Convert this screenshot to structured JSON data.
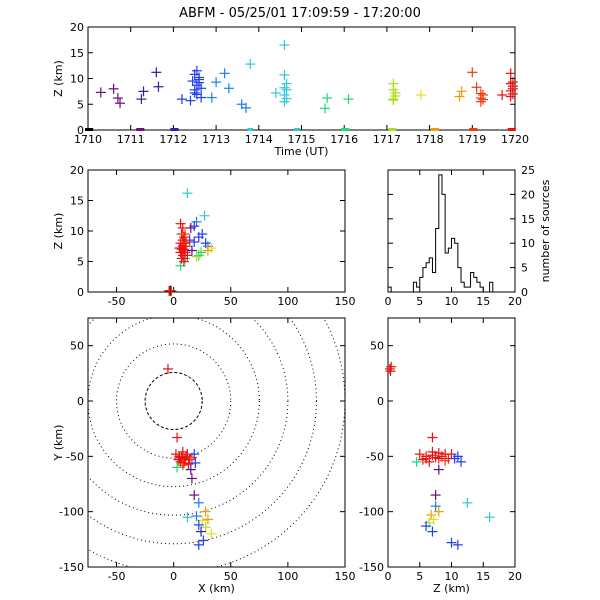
{
  "title": "ABFM - 05/25/01 17:09:59 - 17:20:00",
  "colors": {
    "background": "#ffffff",
    "axes": "#000000",
    "palette": [
      "#000000",
      "#6a0f78",
      "#3a1aa0",
      "#1f3cf0",
      "#1a7ef0",
      "#33c8d8",
      "#1fd87a",
      "#33e01a",
      "#a8e01a",
      "#e8e01a",
      "#f09a0a",
      "#f03a0a",
      "#e81010"
    ]
  },
  "chart_data": [
    {
      "name": "time-height",
      "type": "scatter",
      "xlabel": "Time (UT)",
      "ylabel": "Z (km)",
      "xlim": [
        1710,
        1720
      ],
      "ylim": [
        0,
        20
      ],
      "xticks": [
        1710,
        1711,
        1712,
        1713,
        1714,
        1715,
        1716,
        1717,
        1718,
        1719,
        1720
      ],
      "xticklabels": [
        "1710",
        "1711",
        "1712",
        "1713",
        "1714",
        "1715",
        "1716",
        "1717",
        "1718",
        "1719",
        "1720"
      ],
      "yticks": [
        0,
        5,
        10,
        15,
        20
      ],
      "points": [
        {
          "x": 1710.3,
          "y": 7.3,
          "c": 1
        },
        {
          "x": 1710.6,
          "y": 8.0,
          "c": 1
        },
        {
          "x": 1710.7,
          "y": 6.2,
          "c": 1
        },
        {
          "x": 1710.75,
          "y": 5.2,
          "c": 1
        },
        {
          "x": 1711.3,
          "y": 7.5,
          "c": 2
        },
        {
          "x": 1711.25,
          "y": 6.0,
          "c": 2
        },
        {
          "x": 1711.6,
          "y": 11.2,
          "c": 2
        },
        {
          "x": 1711.65,
          "y": 8.4,
          "c": 2
        },
        {
          "x": 1712.2,
          "y": 6.0,
          "c": 3
        },
        {
          "x": 1712.4,
          "y": 5.7,
          "c": 3
        },
        {
          "x": 1712.5,
          "y": 7.8,
          "c": 3
        },
        {
          "x": 1712.55,
          "y": 8.7,
          "c": 3
        },
        {
          "x": 1712.6,
          "y": 9.8,
          "c": 3
        },
        {
          "x": 1712.5,
          "y": 10.8,
          "c": 3
        },
        {
          "x": 1712.6,
          "y": 9.2,
          "c": 3
        },
        {
          "x": 1712.55,
          "y": 6.9,
          "c": 3
        },
        {
          "x": 1712.65,
          "y": 8.1,
          "c": 3
        },
        {
          "x": 1712.45,
          "y": 9.5,
          "c": 3
        },
        {
          "x": 1712.6,
          "y": 10.2,
          "c": 3
        },
        {
          "x": 1712.5,
          "y": 7.2,
          "c": 3
        },
        {
          "x": 1712.55,
          "y": 11.5,
          "c": 3
        },
        {
          "x": 1712.65,
          "y": 6.3,
          "c": 3
        },
        {
          "x": 1712.9,
          "y": 6.3,
          "c": 4
        },
        {
          "x": 1713.0,
          "y": 9.3,
          "c": 4
        },
        {
          "x": 1713.2,
          "y": 11.0,
          "c": 4
        },
        {
          "x": 1713.3,
          "y": 8.1,
          "c": 4
        },
        {
          "x": 1713.6,
          "y": 5.0,
          "c": 4
        },
        {
          "x": 1713.7,
          "y": 4.3,
          "c": 4
        },
        {
          "x": 1713.8,
          "y": 12.8,
          "c": 5
        },
        {
          "x": 1714.4,
          "y": 7.2,
          "c": 5
        },
        {
          "x": 1714.6,
          "y": 16.5,
          "c": 5
        },
        {
          "x": 1714.6,
          "y": 10.7,
          "c": 5
        },
        {
          "x": 1714.65,
          "y": 9.0,
          "c": 5
        },
        {
          "x": 1714.6,
          "y": 8.2,
          "c": 5
        },
        {
          "x": 1714.65,
          "y": 7.8,
          "c": 5
        },
        {
          "x": 1714.6,
          "y": 6.8,
          "c": 5
        },
        {
          "x": 1714.65,
          "y": 6.1,
          "c": 5
        },
        {
          "x": 1714.6,
          "y": 5.5,
          "c": 5
        },
        {
          "x": 1715.55,
          "y": 4.2,
          "c": 6
        },
        {
          "x": 1715.6,
          "y": 6.2,
          "c": 6
        },
        {
          "x": 1716.1,
          "y": 6.0,
          "c": 6
        },
        {
          "x": 1717.15,
          "y": 9.0,
          "c": 8
        },
        {
          "x": 1717.15,
          "y": 7.8,
          "c": 8
        },
        {
          "x": 1717.2,
          "y": 6.6,
          "c": 8
        },
        {
          "x": 1717.15,
          "y": 6.0,
          "c": 8
        },
        {
          "x": 1717.2,
          "y": 7.2,
          "c": 8
        },
        {
          "x": 1717.15,
          "y": 5.8,
          "c": 8
        },
        {
          "x": 1717.8,
          "y": 6.8,
          "c": 9
        },
        {
          "x": 1718.7,
          "y": 6.5,
          "c": 10
        },
        {
          "x": 1718.75,
          "y": 7.5,
          "c": 10
        },
        {
          "x": 1719.0,
          "y": 11.2,
          "c": 11
        },
        {
          "x": 1719.1,
          "y": 8.3,
          "c": 11
        },
        {
          "x": 1719.2,
          "y": 5.5,
          "c": 11
        },
        {
          "x": 1719.2,
          "y": 6.2,
          "c": 11
        },
        {
          "x": 1719.25,
          "y": 6.8,
          "c": 11
        },
        {
          "x": 1719.2,
          "y": 7.1,
          "c": 11
        },
        {
          "x": 1719.25,
          "y": 5.9,
          "c": 11
        },
        {
          "x": 1719.7,
          "y": 6.8,
          "c": 12
        },
        {
          "x": 1719.9,
          "y": 11.0,
          "c": 12
        },
        {
          "x": 1719.95,
          "y": 9.3,
          "c": 12
        },
        {
          "x": 1719.95,
          "y": 8.5,
          "c": 12
        },
        {
          "x": 1719.9,
          "y": 7.6,
          "c": 12
        },
        {
          "x": 1719.95,
          "y": 7.0,
          "c": 12
        },
        {
          "x": 1719.9,
          "y": 6.5,
          "c": 12
        },
        {
          "x": 1719.95,
          "y": 8.0,
          "c": 12
        },
        {
          "x": 1719.9,
          "y": 9.0,
          "c": 12
        }
      ],
      "ground": [
        {
          "x": 1710.0,
          "c": 0
        },
        {
          "x": 1710.05,
          "c": 0
        },
        {
          "x": 1711.2,
          "c": 1
        },
        {
          "x": 1711.25,
          "c": 1
        },
        {
          "x": 1712.0,
          "c": 2
        },
        {
          "x": 1712.05,
          "c": 2
        },
        {
          "x": 1713.8,
          "c": 5
        },
        {
          "x": 1714.9,
          "c": 5
        },
        {
          "x": 1716.0,
          "c": 6
        },
        {
          "x": 1716.05,
          "c": 6
        },
        {
          "x": 1717.1,
          "c": 8
        },
        {
          "x": 1717.15,
          "c": 8
        },
        {
          "x": 1718.1,
          "c": 10
        },
        {
          "x": 1718.15,
          "c": 10
        },
        {
          "x": 1719.0,
          "c": 11
        },
        {
          "x": 1719.05,
          "c": 11
        },
        {
          "x": 1719.9,
          "c": 12
        },
        {
          "x": 1719.95,
          "c": 12
        }
      ]
    },
    {
      "name": "x-z",
      "type": "scatter",
      "xlabel": "",
      "ylabel": "Z (km)",
      "xlim": [
        -75,
        150
      ],
      "ylim": [
        0,
        20
      ],
      "xticks": [
        -50,
        0,
        50,
        100,
        150
      ],
      "xticklabels": [
        "-50",
        "0",
        "50",
        "100",
        "150"
      ],
      "yticks": [
        0,
        5,
        10,
        15,
        20
      ],
      "points": [
        {
          "x": -3,
          "y": 0.2,
          "c": 0
        },
        {
          "x": -2,
          "y": 0.2,
          "c": 11
        },
        {
          "x": -4,
          "y": 0.2,
          "c": 12
        },
        {
          "x": 12,
          "y": 16.2,
          "c": 5
        },
        {
          "x": 27,
          "y": 12.5,
          "c": 5
        },
        {
          "x": 20,
          "y": 11.5,
          "c": 4
        },
        {
          "x": 18,
          "y": 10.8,
          "c": 3
        },
        {
          "x": 25,
          "y": 9.5,
          "c": 3
        },
        {
          "x": 22,
          "y": 9.0,
          "c": 3
        },
        {
          "x": 15,
          "y": 10.5,
          "c": 1
        },
        {
          "x": 18,
          "y": 8.2,
          "c": 3
        },
        {
          "x": 28,
          "y": 8.0,
          "c": 3
        },
        {
          "x": 30,
          "y": 7.5,
          "c": 4
        },
        {
          "x": 33,
          "y": 7.2,
          "c": 9
        },
        {
          "x": 30,
          "y": 6.8,
          "c": 10
        },
        {
          "x": 24,
          "y": 6.5,
          "c": 7
        },
        {
          "x": 22,
          "y": 6.0,
          "c": 6
        },
        {
          "x": 20,
          "y": 5.8,
          "c": 8
        },
        {
          "x": 6,
          "y": 4.3,
          "c": 6
        },
        {
          "x": 10,
          "y": 5.5,
          "c": 5
        },
        {
          "x": 14,
          "y": 8.5,
          "c": 3
        },
        {
          "x": 16,
          "y": 6.8,
          "c": 2
        },
        {
          "x": 6,
          "y": 11.2,
          "c": 12
        },
        {
          "x": 8,
          "y": 10.5,
          "c": 12
        },
        {
          "x": 7,
          "y": 9.5,
          "c": 12
        },
        {
          "x": 9,
          "y": 9.0,
          "c": 12
        },
        {
          "x": 8,
          "y": 8.5,
          "c": 12
        },
        {
          "x": 6,
          "y": 8.0,
          "c": 12
        },
        {
          "x": 10,
          "y": 8.0,
          "c": 12
        },
        {
          "x": 8,
          "y": 7.5,
          "c": 12
        },
        {
          "x": 7,
          "y": 7.0,
          "c": 12
        },
        {
          "x": 9,
          "y": 7.0,
          "c": 12
        },
        {
          "x": 6,
          "y": 6.5,
          "c": 12
        },
        {
          "x": 10,
          "y": 6.5,
          "c": 12
        },
        {
          "x": 8,
          "y": 6.0,
          "c": 12
        },
        {
          "x": 7,
          "y": 5.5,
          "c": 12
        },
        {
          "x": 9,
          "y": 5.0,
          "c": 12
        },
        {
          "x": 11,
          "y": 7.5,
          "c": 12
        },
        {
          "x": 5,
          "y": 7.2,
          "c": 12
        },
        {
          "x": 12,
          "y": 6.0,
          "c": 12
        },
        {
          "x": 10,
          "y": 9.5,
          "c": 11
        },
        {
          "x": 11,
          "y": 8.2,
          "c": 11
        }
      ]
    },
    {
      "name": "histogram",
      "type": "bar",
      "xlabel": "",
      "ylabel": "number of sources",
      "xlim": [
        0,
        20
      ],
      "ylim": [
        0,
        25
      ],
      "xticks": [
        0,
        5,
        10,
        15,
        20
      ],
      "xticklabels": [
        "0",
        "5",
        "10",
        "15",
        "20"
      ],
      "yticks": [
        0,
        5,
        10,
        15,
        20,
        25
      ],
      "bin_width": 0.5,
      "bin_start": 0,
      "values": [
        1,
        0,
        0,
        0,
        0,
        0,
        0,
        0,
        2,
        1,
        3,
        5,
        6,
        7,
        4,
        13,
        24,
        20,
        8,
        9,
        11,
        10,
        5,
        2,
        1,
        1,
        4,
        3,
        2,
        1,
        0,
        0,
        2,
        0,
        0,
        0,
        0,
        0,
        0,
        0
      ]
    },
    {
      "name": "plan-view",
      "type": "scatter",
      "xlabel": "X (km)",
      "ylabel": "Y (km)",
      "xlim": [
        -75,
        150
      ],
      "ylim": [
        -150,
        75
      ],
      "xticks": [
        -50,
        0,
        50,
        100,
        150
      ],
      "xticklabels": [
        "-50",
        "0",
        "50",
        "100",
        "150"
      ],
      "yticks": [
        -150,
        -100,
        -50,
        0,
        50
      ],
      "yticklabels": [
        "-150",
        "-100",
        "-50",
        "0",
        "50"
      ],
      "range_rings_km": [
        25,
        50,
        75,
        100,
        125,
        150
      ],
      "points": [
        {
          "x": -5,
          "y": 29,
          "c": 12
        },
        {
          "x": 3,
          "y": -33,
          "c": 12
        },
        {
          "x": 2,
          "y": -48,
          "c": 12
        },
        {
          "x": 5,
          "y": -50,
          "c": 12
        },
        {
          "x": 8,
          "y": -46,
          "c": 12
        },
        {
          "x": 10,
          "y": -52,
          "c": 12
        },
        {
          "x": 12,
          "y": -48,
          "c": 12
        },
        {
          "x": 6,
          "y": -55,
          "c": 12
        },
        {
          "x": 9,
          "y": -56,
          "c": 12
        },
        {
          "x": 14,
          "y": -53,
          "c": 12
        },
        {
          "x": 7,
          "y": -51,
          "c": 12
        },
        {
          "x": 11,
          "y": -50,
          "c": 12
        },
        {
          "x": 4,
          "y": -53,
          "c": 12
        },
        {
          "x": 13,
          "y": -57,
          "c": 12
        },
        {
          "x": 8,
          "y": -58,
          "c": 11
        },
        {
          "x": 16,
          "y": -51,
          "c": 11
        },
        {
          "x": 18,
          "y": -48,
          "c": 3
        },
        {
          "x": 19,
          "y": -56,
          "c": 3
        },
        {
          "x": 3,
          "y": -60,
          "c": 6
        },
        {
          "x": 15,
          "y": -62,
          "c": 2
        },
        {
          "x": 16,
          "y": -70,
          "c": 1
        },
        {
          "x": 18,
          "y": -85,
          "c": 1
        },
        {
          "x": 22,
          "y": -92,
          "c": 4
        },
        {
          "x": 28,
          "y": -100,
          "c": 10
        },
        {
          "x": 20,
          "y": -104,
          "c": 4
        },
        {
          "x": 12,
          "y": -105,
          "c": 5
        },
        {
          "x": 25,
          "y": -108,
          "c": 9
        },
        {
          "x": 30,
          "y": -107,
          "c": 10
        },
        {
          "x": 22,
          "y": -112,
          "c": 3
        },
        {
          "x": 28,
          "y": -114,
          "c": 8
        },
        {
          "x": 24,
          "y": -118,
          "c": 2
        },
        {
          "x": 33,
          "y": -120,
          "c": 9
        },
        {
          "x": 26,
          "y": -126,
          "c": 3
        },
        {
          "x": 22,
          "y": -130,
          "c": 3
        }
      ]
    },
    {
      "name": "z-y",
      "type": "scatter",
      "xlabel": "Z (km)",
      "ylabel": "",
      "xlim": [
        0,
        20
      ],
      "ylim": [
        -150,
        75
      ],
      "xticks": [
        0,
        5,
        10,
        15,
        20
      ],
      "xticklabels": [
        "0",
        "5",
        "10",
        "15",
        "20"
      ],
      "yticks": [
        -150,
        -100,
        -50,
        0,
        50
      ],
      "yticklabels": [
        "-150",
        "-100",
        "-50",
        "0",
        "50"
      ],
      "points": [
        {
          "x": 0.3,
          "y": 29,
          "c": 12
        },
        {
          "x": 0.5,
          "y": 31,
          "c": 12
        },
        {
          "x": 0.4,
          "y": 27,
          "c": 12
        },
        {
          "x": 7,
          "y": -33,
          "c": 12
        },
        {
          "x": 5,
          "y": -48,
          "c": 12
        },
        {
          "x": 6,
          "y": -50,
          "c": 12
        },
        {
          "x": 7,
          "y": -46,
          "c": 12
        },
        {
          "x": 8,
          "y": -52,
          "c": 12
        },
        {
          "x": 9,
          "y": -48,
          "c": 12
        },
        {
          "x": 6.5,
          "y": -55,
          "c": 12
        },
        {
          "x": 7.5,
          "y": -51,
          "c": 12
        },
        {
          "x": 8.5,
          "y": -50,
          "c": 12
        },
        {
          "x": 5.5,
          "y": -53,
          "c": 12
        },
        {
          "x": 9.5,
          "y": -52,
          "c": 12
        },
        {
          "x": 10,
          "y": -48,
          "c": 12
        },
        {
          "x": 7,
          "y": -49,
          "c": 12
        },
        {
          "x": 8,
          "y": -47,
          "c": 12
        },
        {
          "x": 6,
          "y": -52,
          "c": 12
        },
        {
          "x": 9,
          "y": -54,
          "c": 11
        },
        {
          "x": 11,
          "y": -50,
          "c": 3
        },
        {
          "x": 11.5,
          "y": -55,
          "c": 3
        },
        {
          "x": 10.5,
          "y": -52,
          "c": 3
        },
        {
          "x": 4.5,
          "y": -55,
          "c": 6
        },
        {
          "x": 8,
          "y": -62,
          "c": 1
        },
        {
          "x": 7.5,
          "y": -85,
          "c": 1
        },
        {
          "x": 6.8,
          "y": -103,
          "c": 10
        },
        {
          "x": 8,
          "y": -100,
          "c": 10
        },
        {
          "x": 7.2,
          "y": -107,
          "c": 9
        },
        {
          "x": 6.5,
          "y": -110,
          "c": 8
        },
        {
          "x": 6,
          "y": -113,
          "c": 3
        },
        {
          "x": 7,
          "y": -118,
          "c": 3
        },
        {
          "x": 12.5,
          "y": -92,
          "c": 5
        },
        {
          "x": 16,
          "y": -105,
          "c": 5
        },
        {
          "x": 10,
          "y": -128,
          "c": 3
        },
        {
          "x": 11,
          "y": -130,
          "c": 3
        },
        {
          "x": 7.5,
          "y": -95,
          "c": 4
        }
      ]
    }
  ]
}
